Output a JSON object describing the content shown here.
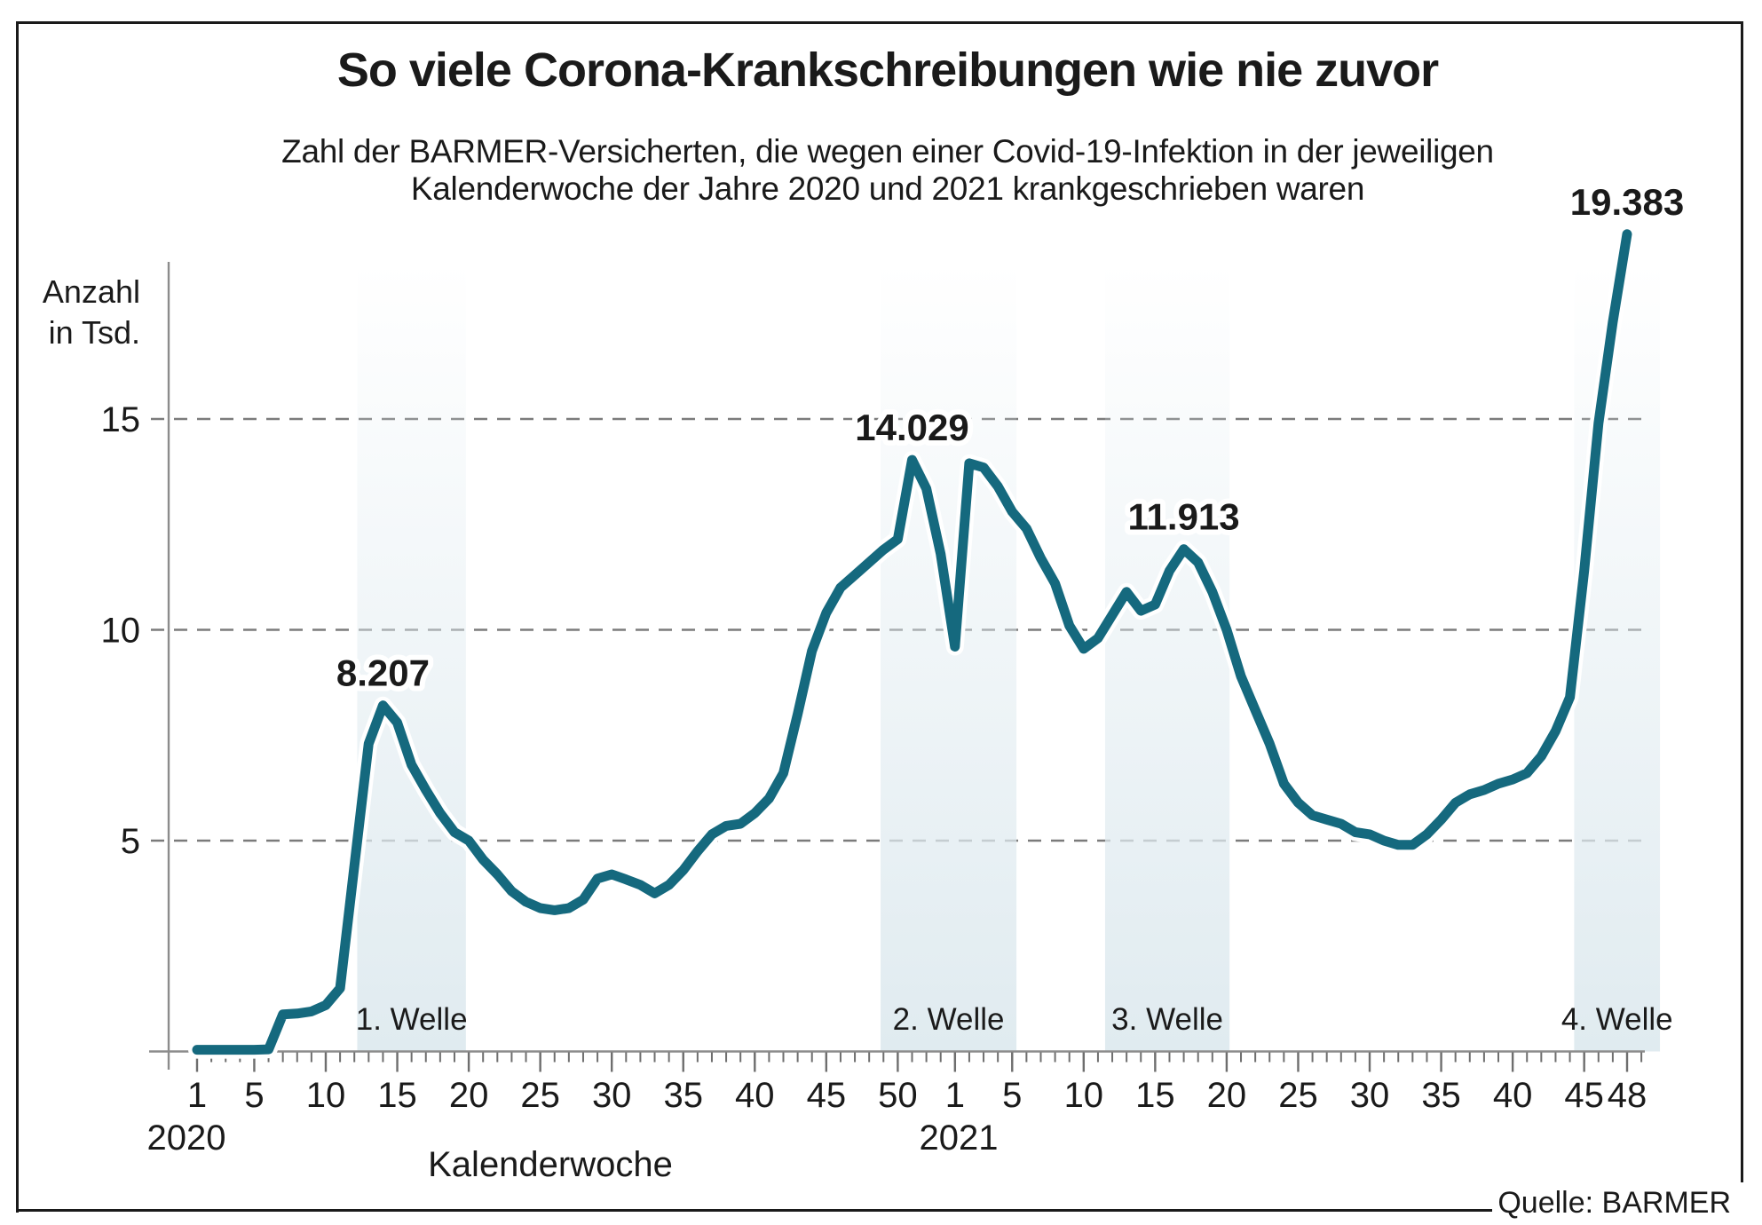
{
  "chart_data": {
    "type": "line",
    "title": "So viele Corona-Krankschreibungen wie nie zuvor",
    "subtitle_line1": "Zahl der BARMER-Versicherten, die wegen einer Covid-19-Infektion in der jeweiligen",
    "subtitle_line2": "Kalenderwoche der Jahre 2020 und 2021 krankgeschrieben waren",
    "ylabel_line1": "Anzahl",
    "ylabel_line2": "in Tsd.",
    "xlabel": "Kalenderwoche",
    "source": "Quelle: BARMER",
    "line_color": "#15697E",
    "band_color": "#E0EBF0",
    "grid_color": "#7b7b7b",
    "axis_color": "#8c8c8c",
    "tick_color": "#6e6e6e",
    "text_color": "#1a1a1a",
    "yticks": [
      5,
      10,
      15
    ],
    "ylim": [
      0,
      19.5
    ],
    "grid": "dashed horizontal",
    "legend": "none",
    "x_axis": {
      "year_2020_label": "2020",
      "year_2021_label": "2021",
      "ticks_2020": [
        1,
        5,
        10,
        15,
        20,
        25,
        30,
        35,
        40,
        45,
        50
      ],
      "ticks_2021": [
        1,
        5,
        10,
        15,
        20,
        25,
        30,
        35,
        40,
        45,
        48
      ]
    },
    "series": [
      {
        "name": "2020",
        "values": [
          0.04,
          0.04,
          0.04,
          0.04,
          0.04,
          0.05,
          0.88,
          0.9,
          0.95,
          1.1,
          1.5,
          4.4,
          7.3,
          8.207,
          7.8,
          6.8,
          6.2,
          5.65,
          5.2,
          5.0,
          4.55,
          4.2,
          3.8,
          3.55,
          3.4,
          3.35,
          3.4,
          3.6,
          4.1,
          4.2,
          4.08,
          3.95,
          3.75,
          3.95,
          4.3,
          4.75,
          5.15,
          5.35,
          5.4,
          5.65,
          6.0,
          6.6,
          8.0,
          9.5,
          10.4,
          11.0,
          11.3,
          11.6,
          11.9,
          12.15,
          14.029,
          13.35,
          11.8
        ]
      },
      {
        "name": "2021",
        "values": [
          9.6,
          13.95,
          13.85,
          13.4,
          12.8,
          12.4,
          11.7,
          11.1,
          10.1,
          9.55,
          9.8,
          10.35,
          10.9,
          10.45,
          10.6,
          11.4,
          11.913,
          11.6,
          10.9,
          10.0,
          8.9,
          8.1,
          7.3,
          6.35,
          5.9,
          5.6,
          5.5,
          5.4,
          5.2,
          5.15,
          5.0,
          4.9,
          4.9,
          5.15,
          5.5,
          5.9,
          6.1,
          6.2,
          6.35,
          6.45,
          6.6,
          7.0,
          7.6,
          8.4,
          11.4,
          14.9,
          17.3,
          19.383
        ]
      }
    ],
    "annotations": [
      {
        "label": "8.207",
        "year": 2020,
        "week": 14,
        "value": 8.207
      },
      {
        "label": "14.029",
        "year": 2020,
        "week": 51,
        "value": 14.029
      },
      {
        "label": "11.913",
        "year": 2021,
        "week": 17,
        "value": 11.913
      },
      {
        "label": "19.383",
        "year": 2021,
        "week": 48,
        "value": 19.383
      }
    ],
    "waves": [
      {
        "label": "1. Welle",
        "from": 12.2,
        "to": 19.8
      },
      {
        "label": "2. Welle",
        "from": 48.8,
        "to": 58.3
      },
      {
        "label": "3. Welle",
        "from": 64.5,
        "to": 73.2
      },
      {
        "label": "4. Welle",
        "from": 97.3,
        "to": 103.3
      }
    ]
  }
}
